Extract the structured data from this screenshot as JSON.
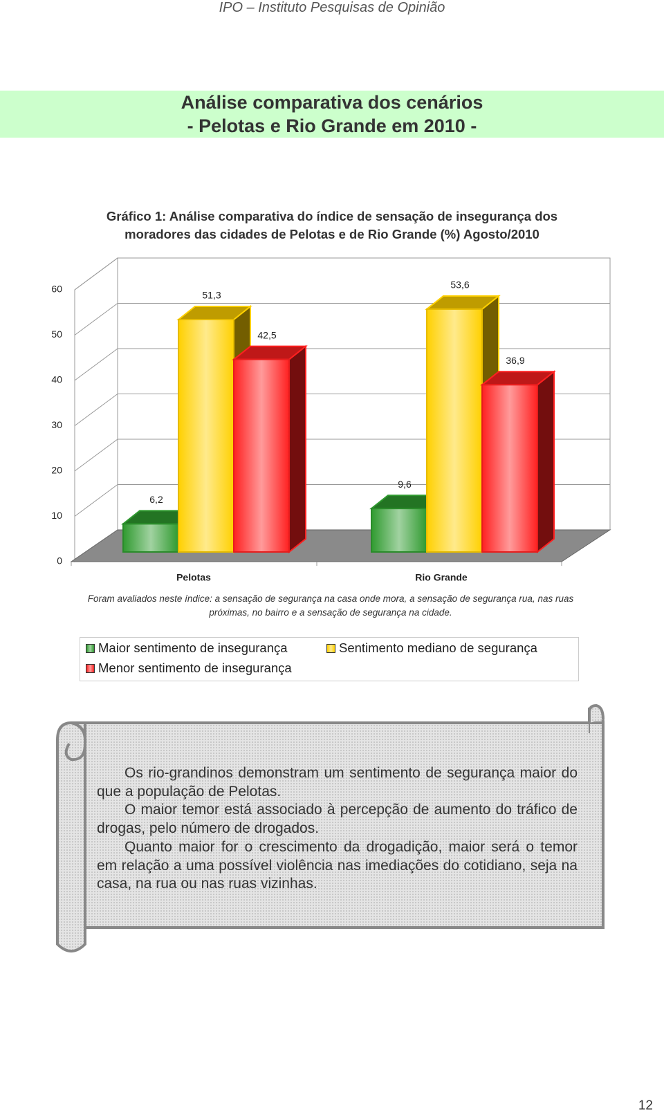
{
  "header": "IPO – Instituto Pesquisas de Opinião",
  "title": [
    "Análise comparativa dos cenários",
    "- Pelotas e Rio Grande em 2010 -"
  ],
  "chart_data": {
    "type": "bar",
    "title": "Gráfico 1: Análise comparativa do índice de sensação de insegurança dos moradores das cidades de Pelotas e de Rio Grande (%) Agosto/2010",
    "categories": [
      "Pelotas",
      "Rio Grande"
    ],
    "series": [
      {
        "name": "Maior sentimento de insegurança",
        "color": "#2f9a2f",
        "values": [
          6.2,
          9.6
        ],
        "value_labels": [
          "6,2",
          "9,6"
        ]
      },
      {
        "name": "Sentimento mediano de segurança",
        "color": "#ffd000",
        "values": [
          51.3,
          53.6
        ],
        "value_labels": [
          "51,3",
          "53,6"
        ]
      },
      {
        "name": "Menor sentimento de insegurança",
        "color": "#ff2020",
        "values": [
          42.5,
          36.9
        ],
        "value_labels": [
          "42,5",
          "36,9"
        ]
      }
    ],
    "ylim": [
      0,
      60
    ],
    "yticks": [
      0,
      10,
      20,
      30,
      40,
      50,
      60
    ],
    "grid": true,
    "note": "Foram avaliados neste índice: a sensação de segurança na casa onde mora, a sensação de segurança rua, nas ruas próximas, no bairro e a sensação de segurança na  cidade."
  },
  "scroll_text": [
    "Os rio-grandinos demonstram um sentimento de segurança maior do que a população de Pelotas.",
    "O maior temor está associado à percepção de aumento do tráfico de drogas, pelo número de drogados.",
    "Quanto maior for o crescimento da drogadição, maior será o temor em relação a uma possível violência nas imediações do cotidiano, seja na casa, na rua ou nas ruas vizinhas."
  ],
  "page_number": "12"
}
